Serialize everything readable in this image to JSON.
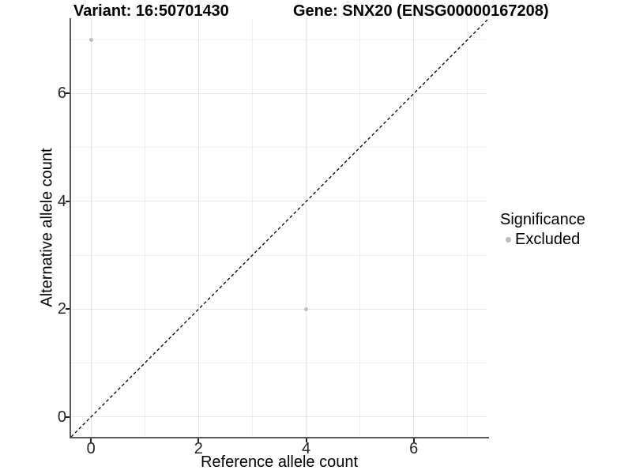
{
  "header": {
    "variant_title": "Variant: 16:50701430",
    "gene_title": "Gene: SNX20 (ENSG00000167208)"
  },
  "axes": {
    "x_label": "Reference allele count",
    "y_label": "Alternative allele count"
  },
  "legend": {
    "title": "Significance",
    "items": [
      {
        "label": "Excluded",
        "color": "#bdbdbd"
      }
    ]
  },
  "colors": {
    "background": "#ffffff",
    "grid_major": "#e7e7e7",
    "grid_minor": "#f1f1f1",
    "axis_line": "#5a5a5a",
    "tick_mark": "#1f1f1f",
    "tick_text": "#262626",
    "point": "#bdbdbd",
    "reference_line": "#000000"
  },
  "chart_data": {
    "type": "scatter",
    "title": "Variant: 16:50701430 | Gene: SNX20 (ENSG00000167208)",
    "xlabel": "Reference allele count",
    "ylabel": "Alternative allele count",
    "xlim": [
      -0.37,
      7.37
    ],
    "ylim": [
      -0.37,
      7.4
    ],
    "x_ticks": [
      0,
      2,
      4,
      6
    ],
    "y_ticks": [
      0,
      2,
      4,
      6
    ],
    "x_minor_ticks": [
      1,
      3,
      5,
      7
    ],
    "y_minor_ticks": [
      1,
      3,
      5,
      7
    ],
    "grid": true,
    "legend_position": "right",
    "legend_title": "Significance",
    "series": [
      {
        "name": "Excluded",
        "color": "#bdbdbd",
        "points": [
          {
            "x": 0,
            "y": 7
          },
          {
            "x": 4,
            "y": 2
          }
        ]
      }
    ],
    "reference_line": {
      "equation": "y = x",
      "style": "dashed",
      "color": "#000000"
    }
  }
}
